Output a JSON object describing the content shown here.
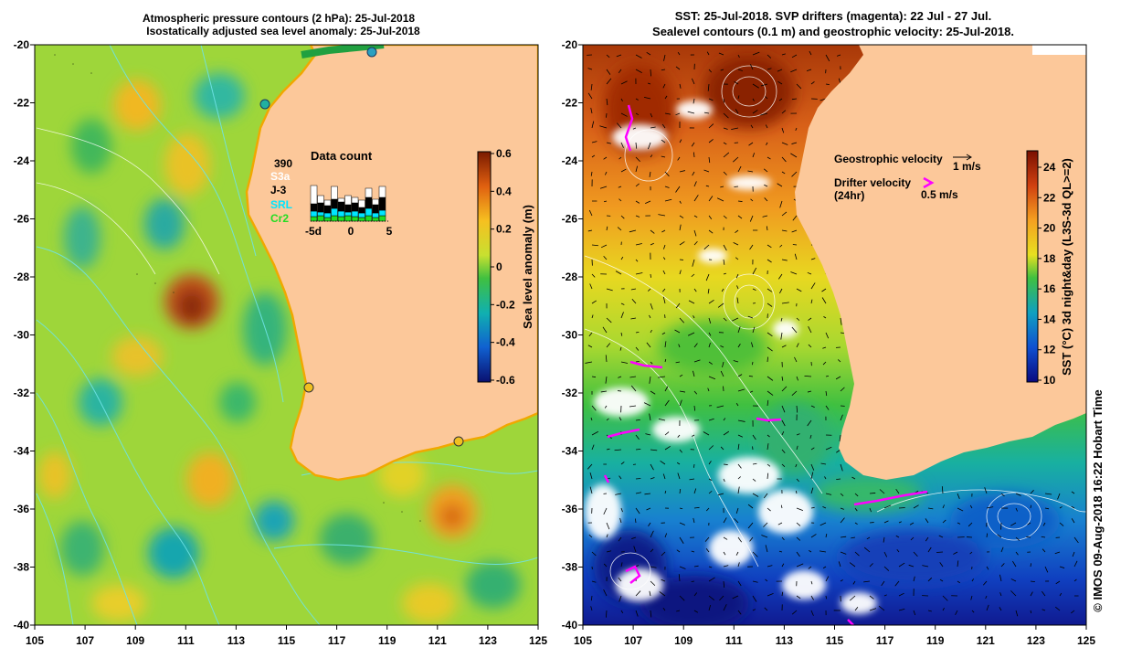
{
  "left_panel": {
    "title_line1": "Atmospheric pressure contours (2 hPa): 25-Jul-2018",
    "title_line2": "Isostatically adjusted sea level anomaly: 25-Jul-2018",
    "x_ticks": [
      "105",
      "107",
      "109",
      "111",
      "113",
      "115",
      "117",
      "119",
      "121",
      "123",
      "125"
    ],
    "y_ticks": [
      "-20",
      "-22",
      "-24",
      "-26",
      "-28",
      "-30",
      "-32",
      "-34",
      "-36",
      "-38",
      "-40"
    ],
    "colorbar": {
      "label": "Sea level anomaly (m)",
      "ticks": [
        "0.6",
        "0.4",
        "0.2",
        "0",
        "-0.2",
        "-0.4",
        "-0.6"
      ]
    },
    "data_count": {
      "title": "Data count",
      "total": "390",
      "legend": [
        {
          "name": "S3a",
          "color": "#ffffff"
        },
        {
          "name": "J-3",
          "color": "#000000"
        },
        {
          "name": "SRL",
          "color": "#00e5ff"
        },
        {
          "name": "Cr2",
          "color": "#22dd22"
        }
      ],
      "axis_labels": [
        "-5d",
        "0",
        "5"
      ]
    },
    "colors": {
      "land": "#fcc89a",
      "ocean": "#9ed63a"
    }
  },
  "right_panel": {
    "title_line1": "SST: 25-Jul-2018. SVP drifters (magenta): 22 Jul - 27 Jul.",
    "title_line2": "Sealevel contours (0.1 m) and geostrophic velocity: 25-Jul-2018.",
    "x_ticks": [
      "105",
      "107",
      "109",
      "111",
      "113",
      "115",
      "117",
      "119",
      "121",
      "123",
      "125"
    ],
    "y_ticks": [
      "-20",
      "-22",
      "-24",
      "-26",
      "-28",
      "-30",
      "-32",
      "-34",
      "-36",
      "-38",
      "-40"
    ],
    "colorbar": {
      "label": "SST (°C) 3d night&day (L3S-3d QL>=2)",
      "ticks": [
        "24",
        "22",
        "20",
        "18",
        "16",
        "14",
        "12",
        "10"
      ]
    },
    "legend": {
      "geostrophic_label": "Geostrophic velocity",
      "geostrophic_scale": "1 m/s",
      "drifter_label": "Drifter velocity",
      "drifter_sub": "(24hr)",
      "drifter_scale": "0.5 m/s",
      "drifter_color": "#ff00ff"
    }
  },
  "credit": "© IMOS 09-Aug-2018 16:22 Hobart Time"
}
